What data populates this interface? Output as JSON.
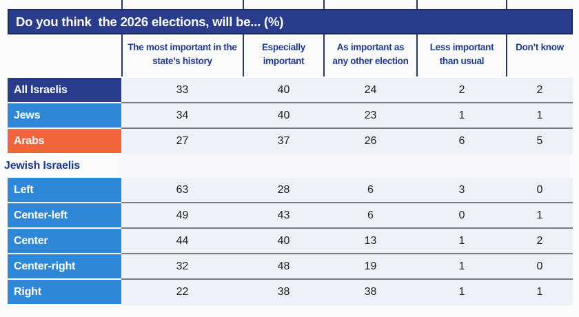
{
  "chart_data": {
    "type": "table",
    "title": "Do you think  the 2026 elections, will be... (%)",
    "columns": [
      "The most important in the state’s history",
      "Especially important",
      "As important as any other election",
      "Less important than usual",
      "Don’t know"
    ],
    "rows": [
      {
        "label": "All Israelis",
        "style": "navy",
        "values": [
          33,
          40,
          24,
          2,
          2
        ]
      },
      {
        "label": "Jews",
        "style": "blue",
        "values": [
          34,
          40,
          23,
          1,
          1
        ]
      },
      {
        "label": "Arabs",
        "style": "orange",
        "values": [
          27,
          37,
          26,
          6,
          5
        ]
      },
      {
        "label": "Jewish Israelis",
        "style": "section",
        "values": null
      },
      {
        "label": "Left",
        "style": "blue",
        "values": [
          63,
          28,
          6,
          3,
          0
        ]
      },
      {
        "label": "Center-left",
        "style": "blue",
        "values": [
          49,
          43,
          6,
          0,
          1
        ]
      },
      {
        "label": "Center",
        "style": "blue",
        "values": [
          44,
          40,
          13,
          1,
          2
        ]
      },
      {
        "label": "Center-right",
        "style": "blue",
        "values": [
          32,
          48,
          19,
          1,
          0
        ]
      },
      {
        "label": "Right",
        "style": "blue",
        "values": [
          22,
          38,
          38,
          1,
          1
        ]
      }
    ],
    "layout_hints": {
      "grid": "horizontal dividers between data rows within each group",
      "legend_position": "none"
    }
  },
  "colors": {
    "navy": "#2a3c8c",
    "blue": "#2e87d7",
    "orange": "#f2643b",
    "header_text": "#1d3a8a",
    "row_bg": "#edf1f8",
    "section_bg": "#f6f8fc",
    "divider_gray": "#7b7d81",
    "title_border": "#1b2a60",
    "page_bg": "#fbfbfb"
  }
}
